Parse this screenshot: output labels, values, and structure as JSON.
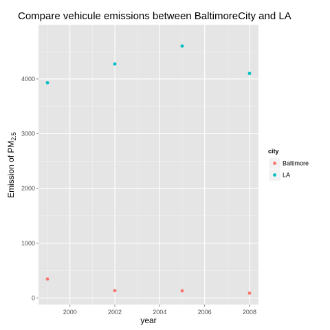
{
  "chart_data": {
    "type": "scatter",
    "title": "Compare vehicule emissions between BaltimoreCity and LA",
    "xlabel": "year",
    "ylabel": "Emission of PM",
    "ylabel_subscript": "2.5",
    "x_ticks": [
      2000,
      2002,
      2004,
      2006,
      2008
    ],
    "y_ticks": [
      0,
      1000,
      2000,
      3000,
      4000
    ],
    "xlim": [
      1998.6,
      2008.4
    ],
    "ylim": [
      -120,
      4990
    ],
    "grid": true,
    "legend": {
      "title": "city",
      "position": "right"
    },
    "series": [
      {
        "name": "Baltimore",
        "color": "#F8766D",
        "x": [
          1999,
          2002,
          2005,
          2008
        ],
        "y": [
          346.8,
          134.3,
          130.4,
          88.3
        ]
      },
      {
        "name": "LA",
        "color": "#00BFC4",
        "x": [
          1999,
          2002,
          2005,
          2008
        ],
        "y": [
          3931.1,
          4274.0,
          4601.4,
          4101.3
        ]
      }
    ]
  }
}
